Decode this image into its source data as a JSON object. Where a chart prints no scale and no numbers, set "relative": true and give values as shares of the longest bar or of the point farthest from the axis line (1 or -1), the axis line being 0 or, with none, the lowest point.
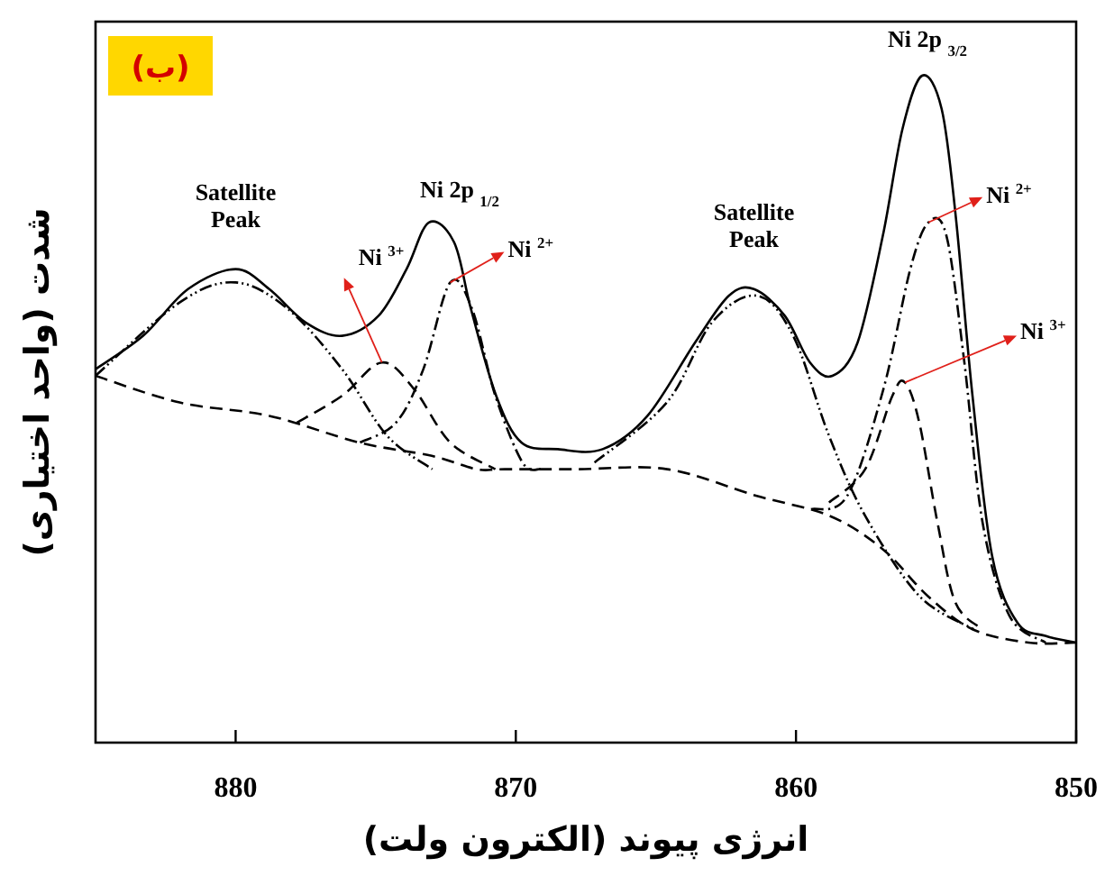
{
  "chart_data": {
    "type": "line",
    "relative": true,
    "xlabel": "انرژی پیوند (الکترون ولت)",
    "ylabel": "شدت (واحد اختیاری)",
    "xlim": [
      885,
      850
    ],
    "xticks": [
      880,
      870,
      860,
      850
    ],
    "annotations": [
      "(ب)",
      {
        "text": "Satellite Peak",
        "x": 880,
        "y": 0.71
      },
      {
        "text": "Ni $^{3+}$",
        "x": 874.78,
        "y": 0.57
      },
      {
        "text": "Ni 2p $_{1/2}$",
        "x": 873.1,
        "y": 0.78
      },
      {
        "text": "Ni $^{2+}$",
        "x": 872.34,
        "y": 0.69
      },
      {
        "text": "Satellite Peak",
        "x": 861.5,
        "y": 0.68
      },
      {
        "text": "Ni 2p $_{3/2}$",
        "x": 855.5,
        "y": 1.0
      },
      {
        "text": "Ni $^{2+}$",
        "x": 855.27,
        "y": 0.78
      },
      {
        "text": "Ni $^{3+}$",
        "x": 856.11,
        "y": 0.54
      }
    ],
    "series": [
      {
        "color": "#000000",
        "line_style": "solid",
        "x": [
          885,
          883.3,
          881.7,
          880,
          878.8,
          877.5,
          876.2,
          874.9,
          873.9,
          873.1,
          872.2,
          871.6,
          870.7,
          869.8,
          868.5,
          866.9,
          865.3,
          863.6,
          862.4,
          861.5,
          860.4,
          859.5,
          858.7,
          857.8,
          856.9,
          856.2,
          855.5,
          854.8,
          854.3,
          853.7,
          853.0,
          852.1,
          851.1,
          850
        ],
        "values": [
          0.56,
          0.61,
          0.68,
          0.71,
          0.68,
          0.63,
          0.61,
          0.64,
          0.71,
          0.78,
          0.75,
          0.65,
          0.52,
          0.45,
          0.44,
          0.44,
          0.49,
          0.6,
          0.67,
          0.68,
          0.64,
          0.57,
          0.55,
          0.6,
          0.76,
          0.92,
          1.0,
          0.95,
          0.79,
          0.52,
          0.28,
          0.18,
          0.16,
          0.15
        ]
      },
      {
        "color": "#000000",
        "line_style": "dashed",
        "x": [
          885,
          882.0,
          878.8,
          875.6,
          873.0,
          871.4,
          870.4,
          867.8,
          864.6,
          861.4,
          858.8,
          856.9,
          855.3,
          853.7,
          851.7,
          850
        ],
        "values": [
          0.55,
          0.51,
          0.49,
          0.45,
          0.43,
          0.41,
          0.41,
          0.41,
          0.41,
          0.37,
          0.34,
          0.29,
          0.22,
          0.17,
          0.15,
          0.15
        ]
      },
      {
        "color": "#000000",
        "line_style": "dashdotdot",
        "x": [
          885,
          882.0,
          880.0,
          878.13,
          876.2,
          874.59,
          872.98
        ],
        "values": [
          0.55,
          0.66,
          0.69,
          0.65,
          0.56,
          0.46,
          0.41
        ]
      },
      {
        "color": "#000000",
        "line_style": "dashdot",
        "x": [
          875.56,
          874.27,
          873.3,
          872.34,
          871.56,
          870.73,
          869.76,
          869.12
        ],
        "values": [
          0.45,
          0.48,
          0.56,
          0.69,
          0.65,
          0.52,
          0.42,
          0.41
        ]
      },
      {
        "color": "#000000",
        "line_style": "dashed",
        "x": [
          877.81,
          876.2,
          874.78,
          873.63,
          872.34,
          870.73
        ],
        "values": [
          0.48,
          0.52,
          0.57,
          0.53,
          0.45,
          0.41
        ]
      },
      {
        "color": "#000000",
        "line_style": "dashdotdot",
        "x": [
          867.19,
          864.61,
          863.0,
          861.39,
          860.1,
          858.82,
          857.53,
          855.6,
          853.66
        ],
        "values": [
          0.42,
          0.51,
          0.63,
          0.67,
          0.61,
          0.46,
          0.34,
          0.22,
          0.17
        ]
      },
      {
        "color": "#000000",
        "line_style": "dashdot",
        "x": [
          859.46,
          858.17,
          856.88,
          855.92,
          855.27,
          854.63,
          853.99,
          853.34,
          852.38,
          851.09
        ],
        "values": [
          0.35,
          0.37,
          0.53,
          0.71,
          0.78,
          0.76,
          0.57,
          0.33,
          0.19,
          0.15
        ]
      },
      {
        "color": "#000000",
        "line_style": "dashed",
        "x": [
          858.82,
          857.53,
          856.56,
          856.11,
          855.6,
          854.95,
          854.31,
          853.34
        ],
        "values": [
          0.36,
          0.41,
          0.52,
          0.54,
          0.48,
          0.33,
          0.21,
          0.17
        ]
      }
    ]
  }
}
